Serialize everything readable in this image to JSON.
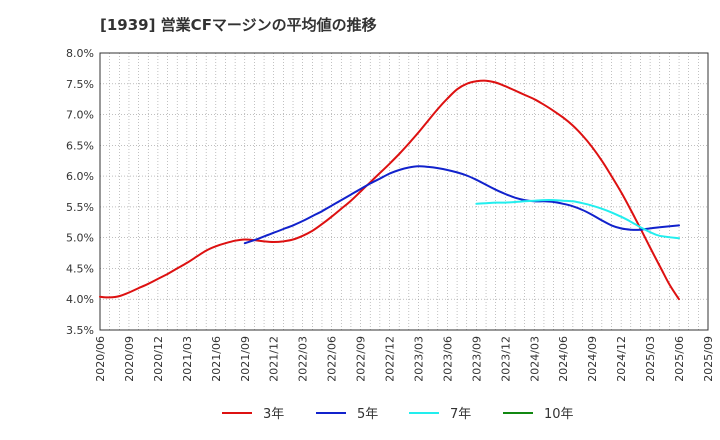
{
  "chart_data": {
    "type": "line",
    "title": "[1939]  営業CFマージンの平均値の推移",
    "xlabel": "",
    "ylabel": "",
    "ylim": [
      3.5,
      8.0
    ],
    "yticks": [
      "8.0%",
      "7.5%",
      "7.0%",
      "6.5%",
      "6.0%",
      "5.5%",
      "5.0%",
      "4.5%",
      "4.0%",
      "3.5%"
    ],
    "xticks": [
      "2020/06",
      "2020/09",
      "2020/12",
      "2021/03",
      "2021/06",
      "2021/09",
      "2021/12",
      "2022/03",
      "2022/06",
      "2022/09",
      "2022/12",
      "2023/03",
      "2023/06",
      "2023/09",
      "2023/12",
      "2024/03",
      "2024/06",
      "2024/09",
      "2024/12",
      "2025/03",
      "2025/06",
      "2025/09"
    ],
    "grid": true,
    "legend_position": "bottom",
    "series": [
      {
        "name": "3年",
        "color": "#dd1111",
        "points": [
          [
            "2020/06",
            4.04
          ],
          [
            "2020/07",
            4.03
          ],
          [
            "2020/08",
            4.05
          ],
          [
            "2020/09",
            4.11
          ],
          [
            "2020/10",
            4.18
          ],
          [
            "2020/11",
            4.25
          ],
          [
            "2020/12",
            4.33
          ],
          [
            "2021/01",
            4.41
          ],
          [
            "2021/02",
            4.5
          ],
          [
            "2021/03",
            4.59
          ],
          [
            "2021/04",
            4.69
          ],
          [
            "2021/05",
            4.79
          ],
          [
            "2021/06",
            4.86
          ],
          [
            "2021/07",
            4.91
          ],
          [
            "2021/08",
            4.95
          ],
          [
            "2021/09",
            4.97
          ],
          [
            "2021/10",
            4.96
          ],
          [
            "2021/11",
            4.94
          ],
          [
            "2021/12",
            4.93
          ],
          [
            "2022/01",
            4.94
          ],
          [
            "2022/02",
            4.97
          ],
          [
            "2022/03",
            5.03
          ],
          [
            "2022/04",
            5.11
          ],
          [
            "2022/05",
            5.22
          ],
          [
            "2022/06",
            5.34
          ],
          [
            "2022/07",
            5.47
          ],
          [
            "2022/08",
            5.6
          ],
          [
            "2022/09",
            5.75
          ],
          [
            "2022/10",
            5.9
          ],
          [
            "2022/11",
            6.05
          ],
          [
            "2022/12",
            6.2
          ],
          [
            "2023/01",
            6.36
          ],
          [
            "2023/02",
            6.53
          ],
          [
            "2023/03",
            6.71
          ],
          [
            "2023/04",
            6.9
          ],
          [
            "2023/05",
            7.09
          ],
          [
            "2023/06",
            7.26
          ],
          [
            "2023/07",
            7.41
          ],
          [
            "2023/08",
            7.5
          ],
          [
            "2023/09",
            7.54
          ],
          [
            "2023/10",
            7.55
          ],
          [
            "2023/11",
            7.52
          ],
          [
            "2023/12",
            7.46
          ],
          [
            "2024/01",
            7.39
          ],
          [
            "2024/02",
            7.32
          ],
          [
            "2024/03",
            7.25
          ],
          [
            "2024/04",
            7.16
          ],
          [
            "2024/05",
            7.06
          ],
          [
            "2024/06",
            6.95
          ],
          [
            "2024/07",
            6.82
          ],
          [
            "2024/08",
            6.66
          ],
          [
            "2024/09",
            6.47
          ],
          [
            "2024/10",
            6.25
          ],
          [
            "2024/11",
            6.0
          ],
          [
            "2024/12",
            5.74
          ],
          [
            "2025/01",
            5.45
          ],
          [
            "2025/02",
            5.15
          ],
          [
            "2025/03",
            4.84
          ],
          [
            "2025/04",
            4.54
          ],
          [
            "2025/05",
            4.24
          ],
          [
            "2025/06",
            4.0
          ]
        ]
      },
      {
        "name": "5年",
        "color": "#1122cc",
        "points": [
          [
            "2021/09",
            4.91
          ],
          [
            "2021/10",
            4.96
          ],
          [
            "2021/11",
            5.02
          ],
          [
            "2021/12",
            5.08
          ],
          [
            "2022/01",
            5.14
          ],
          [
            "2022/02",
            5.2
          ],
          [
            "2022/03",
            5.27
          ],
          [
            "2022/04",
            5.35
          ],
          [
            "2022/05",
            5.43
          ],
          [
            "2022/06",
            5.52
          ],
          [
            "2022/07",
            5.61
          ],
          [
            "2022/08",
            5.7
          ],
          [
            "2022/09",
            5.79
          ],
          [
            "2022/10",
            5.88
          ],
          [
            "2022/11",
            5.96
          ],
          [
            "2022/12",
            6.04
          ],
          [
            "2023/01",
            6.1
          ],
          [
            "2023/02",
            6.14
          ],
          [
            "2023/03",
            6.16
          ],
          [
            "2023/04",
            6.15
          ],
          [
            "2023/05",
            6.13
          ],
          [
            "2023/06",
            6.1
          ],
          [
            "2023/07",
            6.06
          ],
          [
            "2023/08",
            6.01
          ],
          [
            "2023/09",
            5.94
          ],
          [
            "2023/10",
            5.86
          ],
          [
            "2023/11",
            5.78
          ],
          [
            "2023/12",
            5.71
          ],
          [
            "2024/01",
            5.65
          ],
          [
            "2024/02",
            5.61
          ],
          [
            "2024/03",
            5.59
          ],
          [
            "2024/04",
            5.59
          ],
          [
            "2024/05",
            5.58
          ],
          [
            "2024/06",
            5.55
          ],
          [
            "2024/07",
            5.51
          ],
          [
            "2024/08",
            5.45
          ],
          [
            "2024/09",
            5.37
          ],
          [
            "2024/10",
            5.28
          ],
          [
            "2024/11",
            5.2
          ],
          [
            "2024/12",
            5.15
          ],
          [
            "2025/01",
            5.13
          ],
          [
            "2025/02",
            5.13
          ],
          [
            "2025/03",
            5.15
          ],
          [
            "2025/04",
            5.17
          ],
          [
            "2025/06",
            5.2
          ]
        ]
      },
      {
        "name": "7年",
        "color": "#22eeee",
        "points": [
          [
            "2023/09",
            5.55
          ],
          [
            "2023/10",
            5.56
          ],
          [
            "2023/11",
            5.57
          ],
          [
            "2023/12",
            5.57
          ],
          [
            "2024/01",
            5.58
          ],
          [
            "2024/02",
            5.59
          ],
          [
            "2024/03",
            5.6
          ],
          [
            "2024/04",
            5.61
          ],
          [
            "2024/05",
            5.61
          ],
          [
            "2024/06",
            5.6
          ],
          [
            "2024/07",
            5.59
          ],
          [
            "2024/08",
            5.56
          ],
          [
            "2024/09",
            5.52
          ],
          [
            "2024/10",
            5.47
          ],
          [
            "2024/11",
            5.41
          ],
          [
            "2024/12",
            5.34
          ],
          [
            "2025/01",
            5.26
          ],
          [
            "2025/02",
            5.17
          ],
          [
            "2025/03",
            5.09
          ],
          [
            "2025/04",
            5.03
          ],
          [
            "2025/06",
            4.99
          ]
        ]
      },
      {
        "name": "10年",
        "color": "#118811",
        "points": []
      }
    ]
  }
}
